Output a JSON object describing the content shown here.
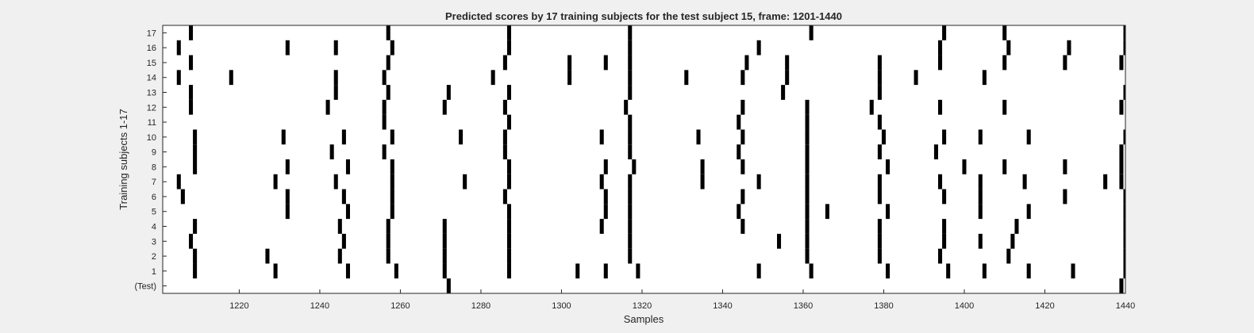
{
  "chart_data": {
    "type": "heatmap",
    "title": "Predicted scores by 17 training subjects for the test subject 15, frame: 1201-1440",
    "xlabel": "Samples",
    "ylabel": "Training subjects 1-17",
    "xlim": [
      1201,
      1440
    ],
    "xticks": [
      1220,
      1240,
      1260,
      1280,
      1300,
      1320,
      1340,
      1360,
      1380,
      1400,
      1420,
      1440
    ],
    "rows": [
      "17",
      "16",
      "15",
      "14",
      "13",
      "12",
      "11",
      "10",
      "9",
      "8",
      "7",
      "6",
      "5",
      "4",
      "3",
      "2",
      "1",
      "(Test)"
    ],
    "colors": {
      "mark": "#000000",
      "background": "#ffffff",
      "figure": "#f0f0f0"
    },
    "marks": {
      "17": [
        1208,
        1257,
        1287,
        1317,
        1362,
        1395,
        1410,
        1440
      ],
      "16": [
        1205,
        1232,
        1244,
        1258,
        1287,
        1317,
        1349,
        1394,
        1411,
        1426,
        1440
      ],
      "15": [
        1208,
        1257,
        1286,
        1302,
        1311,
        1317,
        1346,
        1356,
        1379,
        1394,
        1410,
        1425,
        1439
      ],
      "14": [
        1205,
        1218,
        1244,
        1256,
        1283,
        1302,
        1317,
        1331,
        1345,
        1356,
        1379,
        1388,
        1405
      ],
      "13": [
        1208,
        1244,
        1257,
        1272,
        1287,
        1317,
        1355,
        1379,
        1440
      ],
      "12": [
        1208,
        1242,
        1256,
        1271,
        1286,
        1316,
        1345,
        1361,
        1377,
        1394,
        1410,
        1439
      ],
      "11": [
        1256,
        1287,
        1317,
        1344,
        1361,
        1379
      ],
      "10": [
        1209,
        1231,
        1246,
        1258,
        1275,
        1286,
        1310,
        1317,
        1334,
        1345,
        1361,
        1380,
        1395,
        1404,
        1416,
        1440
      ],
      "9": [
        1209,
        1243,
        1256,
        1286,
        1317,
        1344,
        1361,
        1379,
        1393,
        1439
      ],
      "8": [
        1209,
        1232,
        1247,
        1258,
        1287,
        1311,
        1318,
        1335,
        1345,
        1361,
        1381,
        1400,
        1410,
        1425,
        1439
      ],
      "7": [
        1205,
        1229,
        1244,
        1258,
        1276,
        1287,
        1310,
        1317,
        1335,
        1349,
        1361,
        1379,
        1394,
        1404,
        1415,
        1435,
        1439
      ],
      "6": [
        1206,
        1232,
        1246,
        1258,
        1286,
        1311,
        1317,
        1345,
        1361,
        1379,
        1395,
        1404,
        1425,
        1440
      ],
      "5": [
        1232,
        1247,
        1258,
        1287,
        1311,
        1317,
        1344,
        1361,
        1366,
        1381,
        1404,
        1416,
        1440
      ],
      "4": [
        1209,
        1245,
        1257,
        1271,
        1287,
        1310,
        1317,
        1345,
        1361,
        1379,
        1395,
        1413,
        1440
      ],
      "3": [
        1208,
        1246,
        1257,
        1271,
        1287,
        1317,
        1354,
        1361,
        1379,
        1395,
        1404,
        1412,
        1440
      ],
      "2": [
        1209,
        1227,
        1245,
        1257,
        1271,
        1287,
        1317,
        1361,
        1379,
        1394,
        1411,
        1440
      ],
      "1": [
        1209,
        1229,
        1247,
        1259,
        1271,
        1287,
        1304,
        1311,
        1319,
        1349,
        1362,
        1381,
        1396,
        1405,
        1416,
        1427,
        1440
      ],
      "(Test)": [
        1272,
        1439
      ]
    }
  }
}
